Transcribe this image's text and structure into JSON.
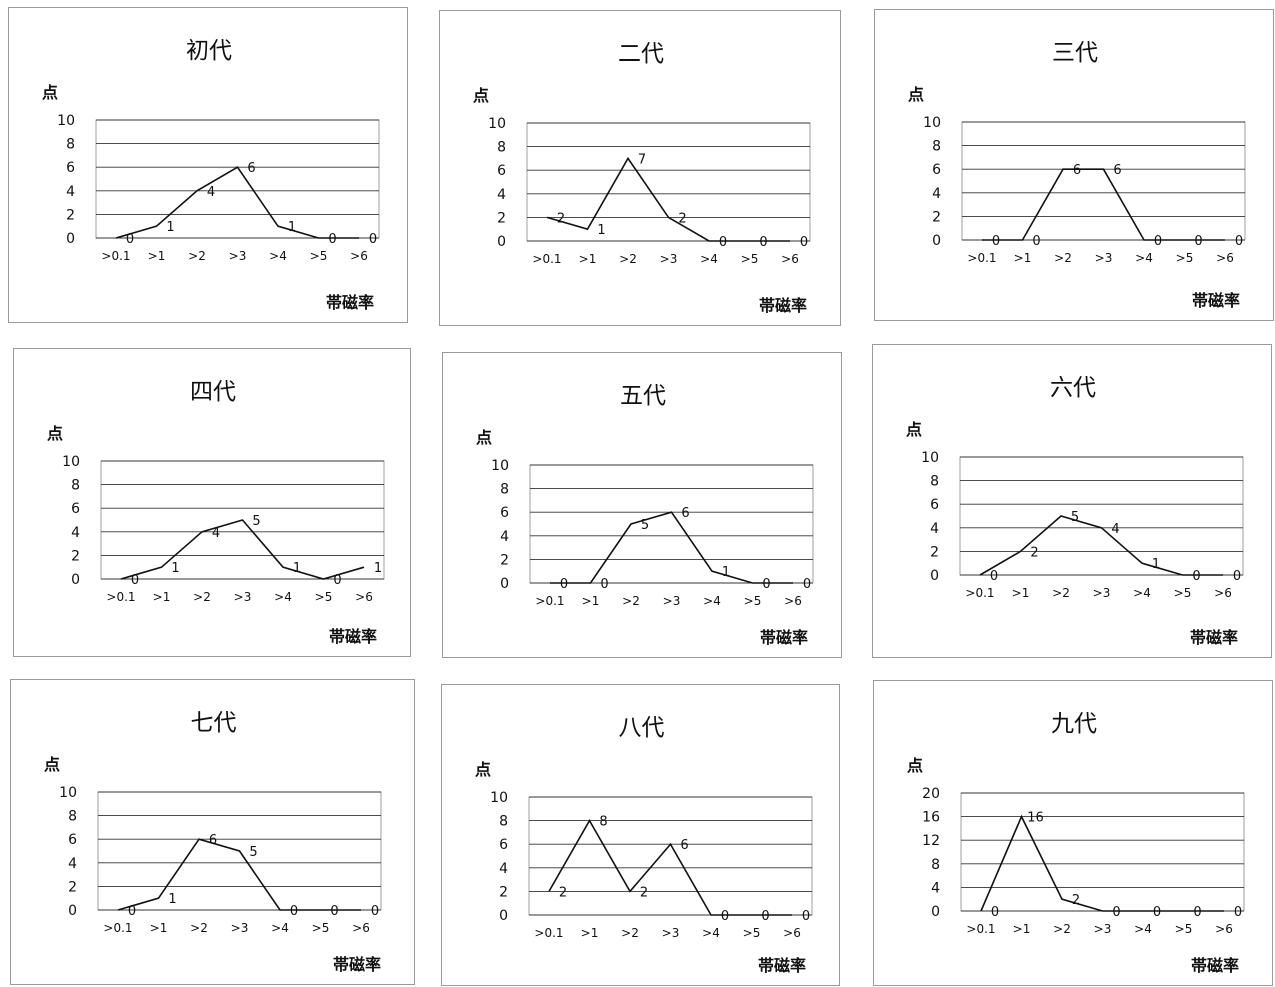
{
  "chart_data": [
    {
      "type": "line",
      "title": "初代",
      "ylabel": "点",
      "xlabel": "帯磁率",
      "categories": [
        ">0.1",
        ">1",
        ">2",
        ">3",
        ">4",
        ">5",
        ">6"
      ],
      "ylim": [
        0,
        10
      ],
      "yticks": [
        0,
        2,
        4,
        6,
        8,
        10
      ],
      "values": [
        0,
        1,
        4,
        6,
        1,
        0,
        0
      ],
      "grid": true
    },
    {
      "type": "line",
      "title": "二代",
      "ylabel": "点",
      "xlabel": "帯磁率",
      "categories": [
        ">0.1",
        ">1",
        ">2",
        ">3",
        ">4",
        ">5",
        ">6"
      ],
      "ylim": [
        0,
        10
      ],
      "yticks": [
        0,
        2,
        4,
        6,
        8,
        10
      ],
      "values": [
        2,
        1,
        7,
        2,
        0,
        0,
        0
      ],
      "grid": true
    },
    {
      "type": "line",
      "title": "三代",
      "ylabel": "点",
      "xlabel": "帯磁率",
      "categories": [
        ">0.1",
        ">1",
        ">2",
        ">3",
        ">4",
        ">5",
        ">6"
      ],
      "ylim": [
        0,
        10
      ],
      "yticks": [
        0,
        2,
        4,
        6,
        8,
        10
      ],
      "values": [
        0,
        0,
        6,
        6,
        0,
        0,
        0
      ],
      "grid": true
    },
    {
      "type": "line",
      "title": "四代",
      "ylabel": "点",
      "xlabel": "帯磁率",
      "categories": [
        ">0.1",
        ">1",
        ">2",
        ">3",
        ">4",
        ">5",
        ">6"
      ],
      "ylim": [
        0,
        10
      ],
      "yticks": [
        0,
        2,
        4,
        6,
        8,
        10
      ],
      "values": [
        0,
        1,
        4,
        5,
        1,
        0,
        1
      ],
      "grid": true
    },
    {
      "type": "line",
      "title": "五代",
      "ylabel": "点",
      "xlabel": "帯磁率",
      "categories": [
        ">0.1",
        ">1",
        ">2",
        ">3",
        ">4",
        ">5",
        ">6"
      ],
      "ylim": [
        0,
        10
      ],
      "yticks": [
        0,
        2,
        4,
        6,
        8,
        10
      ],
      "values": [
        0,
        0,
        5,
        6,
        1,
        0,
        0
      ],
      "grid": true
    },
    {
      "type": "line",
      "title": "六代",
      "ylabel": "点",
      "xlabel": "帯磁率",
      "categories": [
        ">0.1",
        ">1",
        ">2",
        ">3",
        ">4",
        ">5",
        ">6"
      ],
      "ylim": [
        0,
        10
      ],
      "yticks": [
        0,
        2,
        4,
        6,
        8,
        10
      ],
      "values": [
        0,
        2,
        5,
        4,
        1,
        0,
        0
      ],
      "grid": true
    },
    {
      "type": "line",
      "title": "七代",
      "ylabel": "点",
      "xlabel": "帯磁率",
      "categories": [
        ">0.1",
        ">1",
        ">2",
        ">3",
        ">4",
        ">5",
        ">6"
      ],
      "ylim": [
        0,
        10
      ],
      "yticks": [
        0,
        2,
        4,
        6,
        8,
        10
      ],
      "values": [
        0,
        1,
        6,
        5,
        0,
        0,
        0
      ],
      "grid": true
    },
    {
      "type": "line",
      "title": "八代",
      "ylabel": "点",
      "xlabel": "帯磁率",
      "categories": [
        ">0.1",
        ">1",
        ">2",
        ">3",
        ">4",
        ">5",
        ">6"
      ],
      "ylim": [
        0,
        10
      ],
      "yticks": [
        0,
        2,
        4,
        6,
        8,
        10
      ],
      "values": [
        2,
        8,
        2,
        6,
        0,
        0,
        0
      ],
      "grid": true
    },
    {
      "type": "line",
      "title": "九代",
      "ylabel": "点",
      "xlabel": "帯磁率",
      "categories": [
        ">0.1",
        ">1",
        ">2",
        ">3",
        ">4",
        ">5",
        ">6"
      ],
      "ylim": [
        0,
        20
      ],
      "yticks": [
        0,
        4,
        8,
        12,
        16,
        20
      ],
      "values": [
        0,
        16,
        2,
        0,
        0,
        0,
        0
      ],
      "grid": true
    }
  ]
}
